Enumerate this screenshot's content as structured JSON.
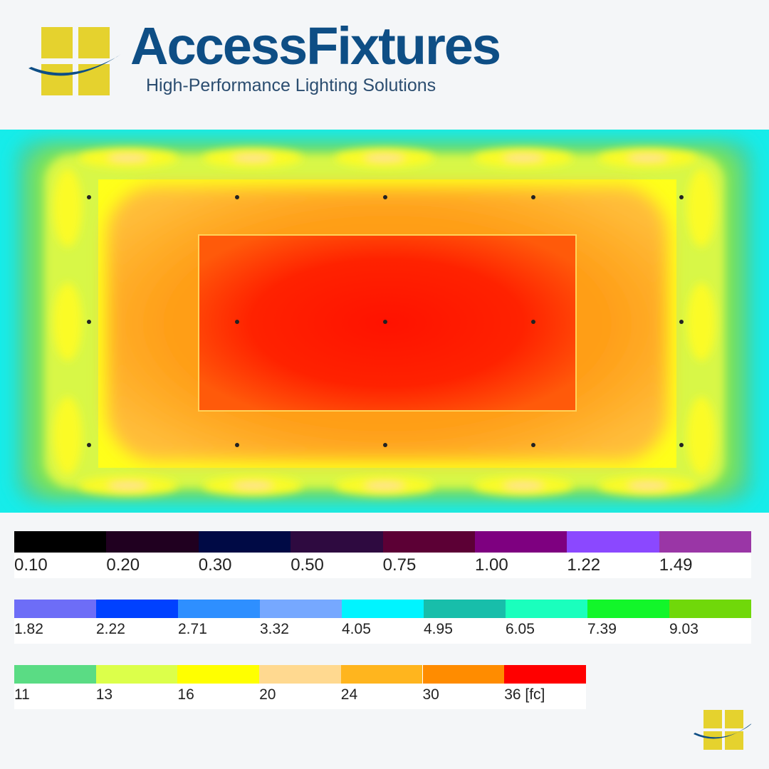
{
  "header": {
    "brand": "AccessFixtures",
    "tagline": "High-Performance Lighting Solutions",
    "logo_icon": "window-swoosh-logo",
    "logo_colors": {
      "blue": "#0e4e85",
      "yellow": "#e5d22e"
    }
  },
  "diagram": {
    "type": "illuminance-false-color-plan",
    "fixture_grid": {
      "columns": 5,
      "rows": 3
    }
  },
  "legend": {
    "unit": "[fc]",
    "rows": [
      [
        {
          "label": "0.10",
          "color": "#000000"
        },
        {
          "label": "0.20",
          "color": "#200020"
        },
        {
          "label": "0.30",
          "color": "#000a45"
        },
        {
          "label": "0.50",
          "color": "#2e0a40"
        },
        {
          "label": "0.75",
          "color": "#5c0035"
        },
        {
          "label": "1.00",
          "color": "#7e0080"
        },
        {
          "label": "1.22",
          "color": "#8b48ff"
        },
        {
          "label": "1.49",
          "color": "#9a36a6"
        }
      ],
      [
        {
          "label": "1.82",
          "color": "#6d6df7"
        },
        {
          "label": "2.22",
          "color": "#0041ff"
        },
        {
          "label": "2.71",
          "color": "#2e8fff"
        },
        {
          "label": "3.32",
          "color": "#76a8ff"
        },
        {
          "label": "4.05",
          "color": "#00f4ff"
        },
        {
          "label": "4.95",
          "color": "#18beaa"
        },
        {
          "label": "6.05",
          "color": "#1affbd"
        },
        {
          "label": "7.39",
          "color": "#12f62a"
        },
        {
          "label": "9.03",
          "color": "#70d80a"
        }
      ],
      [
        {
          "label": "11",
          "color": "#5adc84"
        },
        {
          "label": "13",
          "color": "#dcff4a"
        },
        {
          "label": "16",
          "color": "#ffff00"
        },
        {
          "label": "20",
          "color": "#ffd990"
        },
        {
          "label": "24",
          "color": "#ffb51e"
        },
        {
          "label": "30",
          "color": "#ff8c00"
        },
        {
          "label": "36 [fc]",
          "color": "#ff0000"
        }
      ]
    ]
  }
}
